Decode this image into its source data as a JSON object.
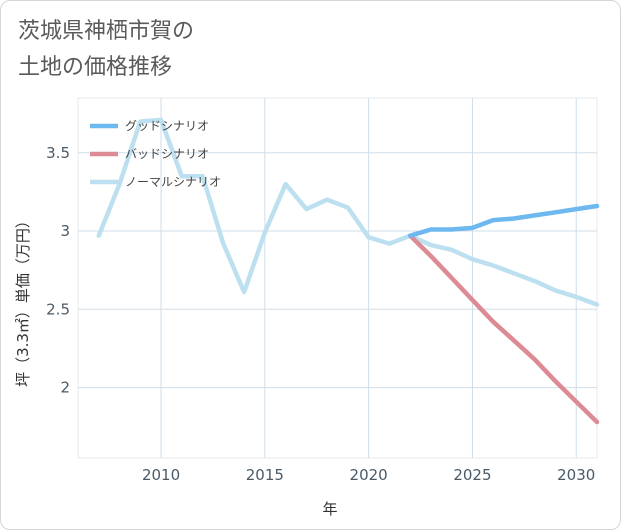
{
  "title_line1": "茨城県神栖市賀の",
  "title_line2": "土地の価格推移",
  "chart_data": {
    "type": "line",
    "xlabel": "年",
    "ylabel": "坪（3.3㎡）単価（万円）",
    "xlim": [
      2006,
      2031
    ],
    "ylim": [
      1.55,
      3.85
    ],
    "x_ticks": [
      2010,
      2015,
      2020,
      2025,
      2030
    ],
    "y_ticks": [
      2,
      2.5,
      3,
      3.5
    ],
    "grid": true,
    "legend_position": "top-left",
    "series": [
      {
        "name": "グッドシナリオ",
        "color": "#6db8ef",
        "x": [
          2022,
          2023,
          2024,
          2025,
          2026,
          2027,
          2028,
          2029,
          2030,
          2031
        ],
        "y": [
          2.97,
          3.01,
          3.01,
          3.02,
          3.07,
          3.08,
          3.1,
          3.12,
          3.14,
          3.16
        ]
      },
      {
        "name": "バッドシナリオ",
        "color": "#dc8a94",
        "x": [
          2022,
          2023,
          2024,
          2025,
          2026,
          2027,
          2028,
          2029,
          2030,
          2031
        ],
        "y": [
          2.97,
          2.84,
          2.7,
          2.56,
          2.42,
          2.3,
          2.18,
          2.04,
          1.91,
          1.78
        ]
      },
      {
        "name": "ノーマルシナリオ",
        "color": "#bde0f0",
        "x": [
          2007,
          2008,
          2009,
          2010,
          2011,
          2012,
          2013,
          2014,
          2015,
          2016,
          2017,
          2018,
          2019,
          2020,
          2021,
          2022,
          2023,
          2024,
          2025,
          2026,
          2027,
          2028,
          2029,
          2030,
          2031
        ],
        "y": [
          2.97,
          3.3,
          3.7,
          3.71,
          3.35,
          3.35,
          2.92,
          2.61,
          2.99,
          3.3,
          3.14,
          3.2,
          3.15,
          2.96,
          2.92,
          2.97,
          2.91,
          2.88,
          2.82,
          2.78,
          2.73,
          2.68,
          2.62,
          2.58,
          2.53
        ]
      }
    ]
  }
}
